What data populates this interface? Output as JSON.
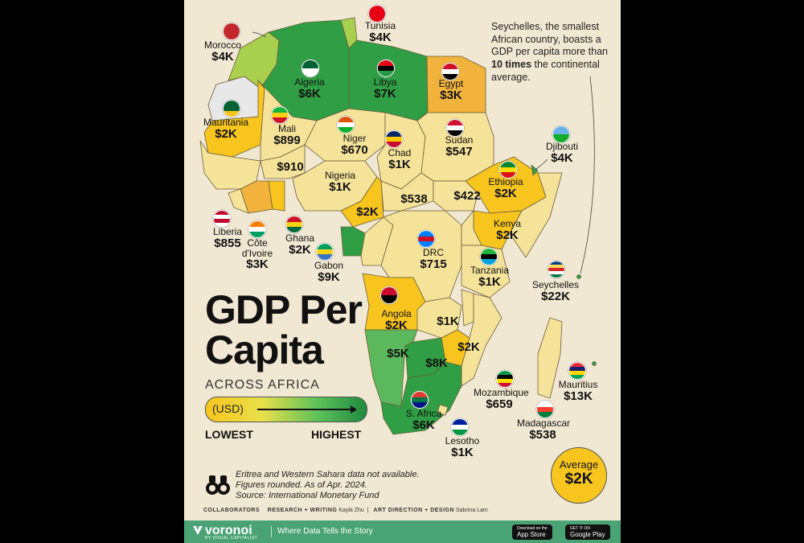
{
  "title": {
    "line1": "GDP Per",
    "line2": "Capita",
    "subtitle": "ACROSS AFRICA"
  },
  "legend": {
    "unit": "(USD)",
    "low": "LOWEST",
    "high": "HIGHEST"
  },
  "callout": {
    "text_before": "Seychelles, the smallest African country, boasts a GDP per capita more than ",
    "text_bold": "10 times",
    "text_after": " the continental average."
  },
  "average": {
    "label": "Average",
    "value": "$2K"
  },
  "notes": [
    "Eritrea and Western Sahara data not available.",
    "Figures rounded. As of Apr. 2024.",
    "Source: International Monetary Fund"
  ],
  "credits": {
    "heading": "COLLABORATORS",
    "research_role": "RESEARCH + WRITING",
    "research_name": "Kayla Zhu",
    "art_role": "ART DIRECTION + DESIGN",
    "art_name": "Sabrina Lam"
  },
  "footer": {
    "brand": "voronoi",
    "brand_sub": "BY VISUAL CAPITALIST",
    "tagline": "Where Data Tells the Story",
    "app_store_small": "Download on the",
    "app_store": "App Store",
    "google_small": "GET IT ON",
    "google": "Google Play"
  },
  "colors": {
    "lowest": "#f7c51e",
    "low": "#f6e39a",
    "mid": "#a9cf4f",
    "high": "#5cb85c",
    "highest": "#1f8a3e",
    "footer": "#4aa375"
  },
  "countries": [
    {
      "id": "morocco",
      "name": "Morocco",
      "value": "$4K",
      "flag": "morocco-flag"
    },
    {
      "id": "tunisia",
      "name": "Tunisia",
      "value": "$4K",
      "flag": "tunisia-flag"
    },
    {
      "id": "algeria",
      "name": "Algeria",
      "value": "$6K",
      "flag": "algeria-flag"
    },
    {
      "id": "libya",
      "name": "Libya",
      "value": "$7K",
      "flag": "libya-flag"
    },
    {
      "id": "egypt",
      "name": "Egypt",
      "value": "$3K",
      "flag": "egypt-flag"
    },
    {
      "id": "mauritania",
      "name": "Mauritania",
      "value": "$2K",
      "flag": "mauritania-flag"
    },
    {
      "id": "mali",
      "name": "Mali",
      "value": "$899",
      "flag": "mali-flag"
    },
    {
      "id": "niger",
      "name": "Niger",
      "value": "$670",
      "flag": "niger-flag"
    },
    {
      "id": "chad",
      "name": "Chad",
      "value": "$1K",
      "flag": "chad-flag"
    },
    {
      "id": "sudan",
      "name": "Sudan",
      "value": "$547",
      "flag": "sudan-flag"
    },
    {
      "id": "djibouti",
      "name": "Djibouti",
      "value": "$4K",
      "flag": "djibouti-flag"
    },
    {
      "id": "ethiopia",
      "name": "Ethiopia",
      "value": "$2K",
      "flag": "ethiopia-flag"
    },
    {
      "id": "nigeria",
      "name": "Nigeria",
      "value": "$1K",
      "flag": ""
    },
    {
      "id": "burkina",
      "name": "",
      "value": "$910",
      "flag": ""
    },
    {
      "id": "car",
      "name": "",
      "value": "$538",
      "flag": ""
    },
    {
      "id": "ssudan",
      "name": "",
      "value": "$422",
      "flag": ""
    },
    {
      "id": "cameroon",
      "name": "",
      "value": "$2K",
      "flag": ""
    },
    {
      "id": "kenya",
      "name": "Kenya",
      "value": "$2K",
      "flag": ""
    },
    {
      "id": "liberia",
      "name": "Liberia",
      "value": "$855",
      "flag": "liberia-flag"
    },
    {
      "id": "cotedivoire",
      "name": "Côte d'Ivoire",
      "value": "$3K",
      "flag": "cotedivoire-flag"
    },
    {
      "id": "ghana",
      "name": "Ghana",
      "value": "$2K",
      "flag": "ghana-flag"
    },
    {
      "id": "gabon",
      "name": "Gabon",
      "value": "$9K",
      "flag": "gabon-flag"
    },
    {
      "id": "drc",
      "name": "DRC",
      "value": "$715",
      "flag": "drc-flag"
    },
    {
      "id": "tanzania",
      "name": "Tanzania",
      "value": "$1K",
      "flag": "tanzania-flag"
    },
    {
      "id": "seychelles",
      "name": "Seychelles",
      "value": "$22K",
      "flag": "seychelles-flag"
    },
    {
      "id": "angola",
      "name": "Angola",
      "value": "$2K",
      "flag": "angola-flag"
    },
    {
      "id": "zambia",
      "name": "",
      "value": "$1K",
      "flag": ""
    },
    {
      "id": "namibia",
      "name": "",
      "value": "$5K",
      "flag": ""
    },
    {
      "id": "botswana",
      "name": "",
      "value": "$8K",
      "flag": ""
    },
    {
      "id": "zimbabwe",
      "name": "",
      "value": "$2K",
      "flag": ""
    },
    {
      "id": "mozambique",
      "name": "Mozambique",
      "value": "$659",
      "flag": "mozambique-flag"
    },
    {
      "id": "mauritius",
      "name": "Mauritius",
      "value": "$13K",
      "flag": "mauritius-flag"
    },
    {
      "id": "madagascar",
      "name": "Madagascar",
      "value": "$538",
      "flag": "madagascar-flag"
    },
    {
      "id": "safrica",
      "name": "S. Africa",
      "value": "$6K",
      "flag": "safrica-flag"
    },
    {
      "id": "lesotho",
      "name": "Lesotho",
      "value": "$1K",
      "flag": "lesotho-flag"
    }
  ]
}
